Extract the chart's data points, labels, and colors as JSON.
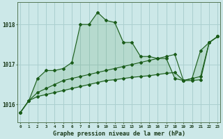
{
  "title": "Graphe pression niveau de la mer (hPa)",
  "background_color": "#cce8e8",
  "grid_color": "#aacfcf",
  "line_color": "#1a5c1a",
  "fill_color": "#3a8c3a",
  "text_color": "#1a3a1a",
  "hours": [
    0,
    1,
    2,
    3,
    4,
    5,
    6,
    7,
    8,
    9,
    10,
    11,
    12,
    13,
    14,
    15,
    16,
    17,
    18,
    19,
    20,
    21,
    22,
    23
  ],
  "series1": [
    1015.8,
    1016.1,
    1016.65,
    1016.85,
    1016.85,
    1016.9,
    1017.05,
    1018.0,
    1018.0,
    1018.3,
    1018.1,
    1018.05,
    1017.55,
    1017.55,
    1017.2,
    1017.2,
    1017.15,
    1017.15,
    1016.65,
    1016.6,
    1016.65,
    1017.35,
    1017.55,
    1017.7
  ],
  "series2": [
    1015.8,
    1016.1,
    1016.3,
    1016.4,
    1016.5,
    1016.6,
    1016.65,
    1016.7,
    1016.75,
    1016.8,
    1016.85,
    1016.9,
    1016.95,
    1017.0,
    1017.05,
    1017.1,
    1017.15,
    1017.2,
    1017.25,
    1016.6,
    1016.65,
    1016.7,
    1017.55,
    1017.7
  ],
  "series3": [
    1015.8,
    1016.1,
    1016.2,
    1016.25,
    1016.3,
    1016.35,
    1016.4,
    1016.45,
    1016.5,
    1016.55,
    1016.6,
    1016.62,
    1016.65,
    1016.68,
    1016.7,
    1016.72,
    1016.75,
    1016.78,
    1016.8,
    1016.6,
    1016.6,
    1016.62,
    1017.55,
    1017.7
  ],
  "ylim": [
    1015.55,
    1018.55
  ],
  "yticks": [
    1016,
    1017,
    1018
  ],
  "xlim": [
    -0.3,
    23.3
  ]
}
